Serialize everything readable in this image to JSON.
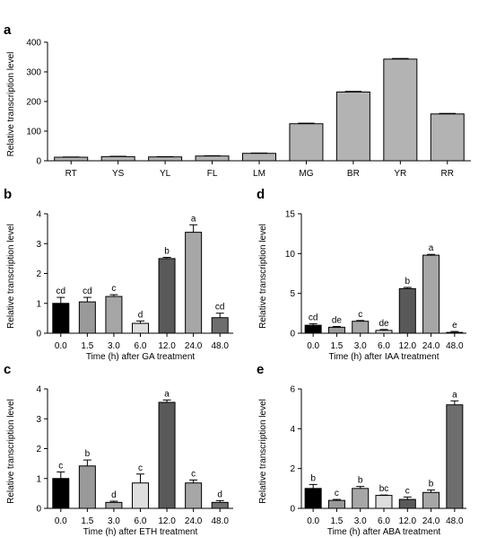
{
  "chart_data": [
    {
      "panel": "a",
      "type": "bar",
      "ylabel": "Relative transcription level",
      "xlabel": "",
      "ylim": [
        0,
        400
      ],
      "yticks": [
        "0",
        "100",
        "200",
        "300",
        "400"
      ],
      "categories": [
        "RT",
        "YS",
        "YL",
        "FL",
        "LM",
        "MG",
        "BR",
        "YR",
        "RR"
      ],
      "values": [
        12,
        14,
        13,
        16,
        25,
        125,
        232,
        343,
        158
      ],
      "errors": [
        1,
        1,
        1,
        1,
        1,
        2,
        2,
        2,
        2
      ],
      "colors": [
        "#b3b3b3",
        "#b3b3b3",
        "#b3b3b3",
        "#b3b3b3",
        "#b3b3b3",
        "#b3b3b3",
        "#b3b3b3",
        "#b3b3b3",
        "#b3b3b3"
      ],
      "labels": []
    },
    {
      "panel": "b",
      "type": "bar",
      "ylabel": "Relative transcription level",
      "xlabel": "Time (h) after GA treatment",
      "ylim": [
        0,
        4
      ],
      "yticks": [
        "0",
        "1",
        "2",
        "3",
        "4"
      ],
      "categories": [
        "0.0",
        "1.5",
        "3.0",
        "6.0",
        "12.0",
        "24.0",
        "48.0"
      ],
      "values": [
        1.0,
        1.05,
        1.23,
        0.33,
        2.5,
        3.38,
        0.52
      ],
      "errors": [
        0.2,
        0.15,
        0.06,
        0.08,
        0.04,
        0.25,
        0.15
      ],
      "labels": [
        "cd",
        "cd",
        "c",
        "d",
        "b",
        "a",
        "cd"
      ],
      "colors": [
        "#000000",
        "#999999",
        "#a6a6a6",
        "#dedede",
        "#595959",
        "#a6a6a6",
        "#6e6e6e"
      ]
    },
    {
      "panel": "d",
      "type": "bar",
      "ylabel": "Relative transcription level",
      "xlabel": "Time (h) after IAA treatment",
      "ylim": [
        0,
        15
      ],
      "yticks": [
        "0",
        "5",
        "10",
        "15"
      ],
      "categories": [
        "0.0",
        "1.5",
        "3.0",
        "6.0",
        "12.0",
        "24.0",
        "48.0"
      ],
      "values": [
        1.0,
        0.75,
        1.5,
        0.35,
        5.6,
        9.8,
        0.1
      ],
      "errors": [
        0.2,
        0.1,
        0.1,
        0.12,
        0.15,
        0.1,
        0.12
      ],
      "labels": [
        "cd",
        "de",
        "c",
        "de",
        "b",
        "a",
        "e"
      ],
      "colors": [
        "#000000",
        "#999999",
        "#a6a6a6",
        "#dedede",
        "#595959",
        "#a6a6a6",
        "#6e6e6e"
      ]
    },
    {
      "panel": "c",
      "type": "bar",
      "ylabel": "Relative transcription level",
      "xlabel": "Time (h) after ETH treatment",
      "ylim": [
        0,
        4
      ],
      "yticks": [
        "0",
        "1",
        "2",
        "3",
        "4"
      ],
      "categories": [
        "0.0",
        "1.5",
        "3.0",
        "6.0",
        "12.0",
        "24.0",
        "48.0"
      ],
      "values": [
        1.0,
        1.42,
        0.2,
        0.85,
        3.55,
        0.85,
        0.2
      ],
      "errors": [
        0.22,
        0.2,
        0.04,
        0.3,
        0.08,
        0.1,
        0.06
      ],
      "labels": [
        "c",
        "b",
        "d",
        "c",
        "a",
        "c",
        "d"
      ],
      "colors": [
        "#000000",
        "#999999",
        "#a6a6a6",
        "#dedede",
        "#595959",
        "#a6a6a6",
        "#6e6e6e"
      ]
    },
    {
      "panel": "e",
      "type": "bar",
      "ylabel": "Relative transcription level",
      "xlabel": "Time (h) after ABA treatment",
      "ylim": [
        0,
        6
      ],
      "yticks": [
        "0",
        "2",
        "4",
        "6"
      ],
      "categories": [
        "0.0",
        "1.5",
        "3.0",
        "6.0",
        "12.0",
        "24.0",
        "48.0"
      ],
      "values": [
        1.0,
        0.4,
        1.0,
        0.65,
        0.45,
        0.8,
        5.2
      ],
      "errors": [
        0.2,
        0.05,
        0.1,
        0.02,
        0.12,
        0.12,
        0.2
      ],
      "labels": [
        "b",
        "c",
        "b",
        "bc",
        "c",
        "b",
        "a"
      ],
      "colors": [
        "#000000",
        "#999999",
        "#a6a6a6",
        "#dedede",
        "#595959",
        "#a6a6a6",
        "#6e6e6e"
      ]
    }
  ]
}
